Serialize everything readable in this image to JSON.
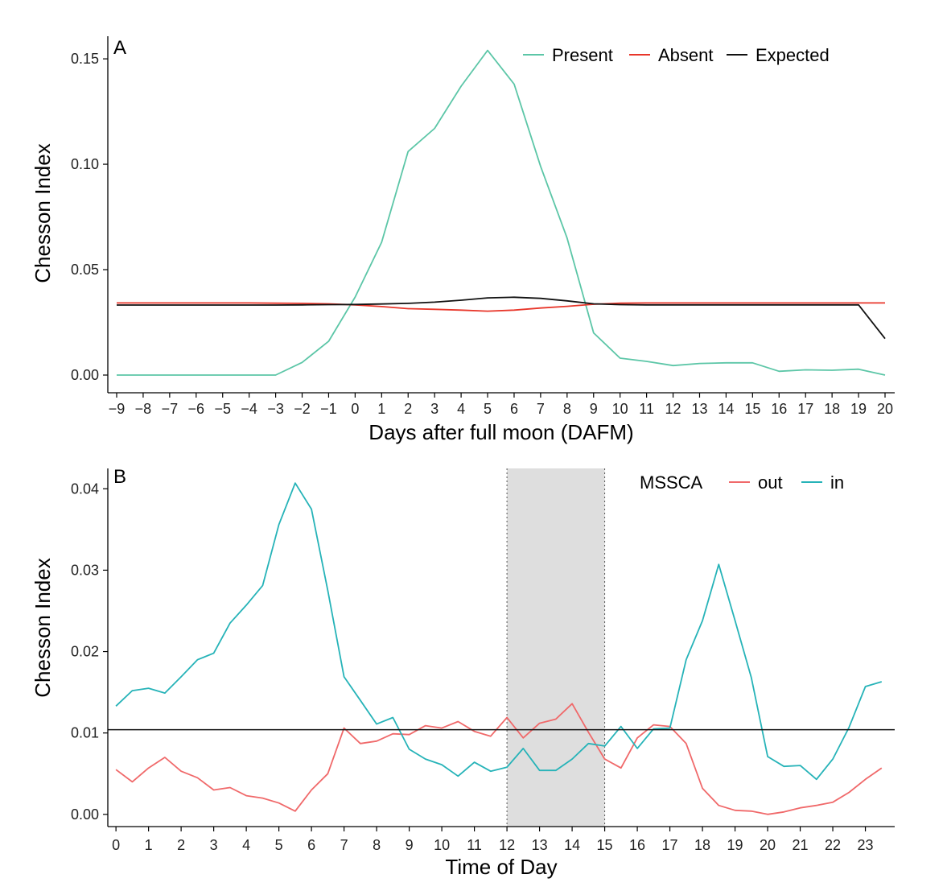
{
  "chart_data": [
    {
      "type": "line",
      "panel_label": "A",
      "xlabel": "Days after full moon (DAFM)",
      "ylabel": "Chesson Index",
      "xlim": [
        -9,
        20
      ],
      "ylim": [
        0,
        0.155
      ],
      "x_ticks": [
        -9,
        -8,
        -7,
        -6,
        -5,
        -4,
        -3,
        -2,
        -1,
        0,
        1,
        2,
        3,
        4,
        5,
        6,
        7,
        8,
        9,
        10,
        11,
        12,
        13,
        14,
        15,
        16,
        17,
        18,
        19,
        20
      ],
      "y_ticks": [
        0.0,
        0.05,
        0.1,
        0.15
      ],
      "y_tick_labels": [
        "0.00",
        "0.05",
        "0.10",
        "0.15"
      ],
      "grid": false,
      "legend_position": "top-right",
      "x": [
        -9,
        -8,
        -7,
        -6,
        -5,
        -4,
        -3,
        -2,
        -1,
        0,
        1,
        2,
        3,
        4,
        5,
        6,
        7,
        8,
        9,
        10,
        11,
        12,
        13,
        14,
        15,
        16,
        17,
        18,
        19,
        20
      ],
      "series": [
        {
          "name": "Present",
          "color": "#5cc6a7",
          "values": [
            0,
            0,
            0,
            0,
            0,
            0,
            0,
            0.006,
            0.016,
            0.037,
            0.063,
            0.106,
            0.117,
            0.137,
            0.154,
            0.138,
            0.099,
            0.065,
            0.02,
            0.008,
            0.0065,
            0.0045,
            0.0055,
            0.0058,
            0.0058,
            0.0018,
            0.0025,
            0.0023,
            0.0028,
            0.0
          ]
        },
        {
          "name": "Absent",
          "color": "#e8362a",
          "values": [
            0.0342,
            0.0342,
            0.0342,
            0.0342,
            0.0342,
            0.0342,
            0.0341,
            0.034,
            0.0338,
            0.0333,
            0.0325,
            0.0315,
            0.0312,
            0.0308,
            0.0303,
            0.0308,
            0.0318,
            0.0326,
            0.0336,
            0.0341,
            0.0342,
            0.0342,
            0.0342,
            0.0342,
            0.0342,
            0.0342,
            0.0342,
            0.0342,
            0.0342,
            0.0342
          ]
        },
        {
          "name": "Expected",
          "color": "#111111",
          "values": [
            0.0332,
            0.0332,
            0.0332,
            0.0332,
            0.0332,
            0.0332,
            0.0332,
            0.0333,
            0.0334,
            0.0335,
            0.0337,
            0.034,
            0.0346,
            0.0355,
            0.0366,
            0.0369,
            0.0364,
            0.0352,
            0.0338,
            0.0334,
            0.0333,
            0.0333,
            0.0333,
            0.0333,
            0.0333,
            0.0333,
            0.0333,
            0.0333,
            0.0333,
            0.0173
          ]
        }
      ]
    },
    {
      "type": "line",
      "panel_label": "B",
      "xlabel": "Time of Day",
      "ylabel": "Chesson Index",
      "xlim": [
        -0.25,
        23.9
      ],
      "ylim": [
        -0.0015,
        0.0425
      ],
      "x_ticks": [
        0,
        1,
        2,
        3,
        4,
        5,
        6,
        7,
        8,
        9,
        10,
        11,
        12,
        13,
        14,
        15,
        16,
        17,
        18,
        19,
        20,
        21,
        22,
        23
      ],
      "y_ticks": [
        0.0,
        0.01,
        0.02,
        0.03,
        0.04
      ],
      "y_tick_labels": [
        "0.00",
        "0.01",
        "0.02",
        "0.03",
        "0.04"
      ],
      "grid": false,
      "legend_title": "MSSCA",
      "legend_position": "top-right",
      "shaded_region": {
        "x_start": 12,
        "x_end": 15,
        "color": "#dedede"
      },
      "hline": {
        "y": 0.0104,
        "color": "#111111"
      },
      "x": [
        0,
        0.5,
        1,
        1.5,
        2,
        2.5,
        3,
        3.5,
        4,
        4.5,
        5,
        5.5,
        6,
        6.5,
        7,
        7.5,
        8,
        8.5,
        9,
        9.5,
        10,
        10.5,
        11,
        11.5,
        12,
        12.5,
        13,
        13.5,
        14,
        14.5,
        15,
        15.5,
        16,
        16.5,
        17,
        17.5,
        18,
        18.5,
        19,
        19.5,
        20,
        20.5,
        21,
        21.5,
        22,
        22.5,
        23,
        23.5
      ],
      "series": [
        {
          "name": "out",
          "color": "#f0696a",
          "values": [
            0.0055,
            0.004,
            0.0057,
            0.007,
            0.0053,
            0.0045,
            0.003,
            0.0033,
            0.0023,
            0.002,
            0.0014,
            0.0004,
            0.003,
            0.005,
            0.0106,
            0.0087,
            0.009,
            0.0099,
            0.0098,
            0.0109,
            0.0106,
            0.0114,
            0.0102,
            0.0096,
            0.0119,
            0.0094,
            0.0112,
            0.0117,
            0.0136,
            0.0101,
            0.0068,
            0.0057,
            0.0094,
            0.011,
            0.0108,
            0.0087,
            0.0032,
            0.0011,
            0.0005,
            0.0004,
            0.0,
            0.0003,
            0.0008,
            0.0011,
            0.0015,
            0.0027,
            0.0043,
            0.0057
          ]
        },
        {
          "name": "in",
          "color": "#26b3b8",
          "values": [
            0.0133,
            0.0152,
            0.0155,
            0.0149,
            0.0169,
            0.019,
            0.0198,
            0.0235,
            0.0257,
            0.0281,
            0.0356,
            0.0407,
            0.0375,
            0.0275,
            0.0169,
            0.014,
            0.0111,
            0.0119,
            0.008,
            0.0068,
            0.0061,
            0.0047,
            0.0064,
            0.0053,
            0.0058,
            0.0081,
            0.0054,
            0.0054,
            0.0068,
            0.0087,
            0.0084,
            0.0108,
            0.0081,
            0.0105,
            0.0106,
            0.019,
            0.0238,
            0.0307,
            0.0238,
            0.0168,
            0.0071,
            0.0059,
            0.006,
            0.0043,
            0.0068,
            0.0107,
            0.0157,
            0.0163
          ]
        }
      ]
    }
  ]
}
